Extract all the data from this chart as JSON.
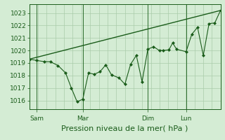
{
  "bg_color": "#d4ecd4",
  "grid_color": "#aaccaa",
  "line_color": "#1a5c1a",
  "marker_color": "#1a5c1a",
  "xlabel": "Pression niveau de la mer( hPa )",
  "xlabel_fontsize": 8,
  "yticks": [
    1016,
    1017,
    1018,
    1019,
    1020,
    1021,
    1022,
    1023
  ],
  "xtick_labels": [
    "Sam",
    "Mar",
    "Dim",
    "Lun"
  ],
  "ylim": [
    1015.3,
    1023.7
  ],
  "xlim": [
    0,
    1.0
  ],
  "line1_x": [
    0.0,
    0.04,
    0.08,
    0.11,
    0.15,
    0.19,
    0.22,
    0.25,
    0.28,
    0.31,
    0.34,
    0.37,
    0.4,
    0.43,
    0.47,
    0.5,
    0.53,
    0.56,
    0.59,
    0.62,
    0.65,
    0.68,
    0.7,
    0.73,
    0.75,
    0.77,
    0.82,
    0.85,
    0.88,
    0.91,
    0.94,
    0.97,
    1.0
  ],
  "line1_y": [
    1019.3,
    1019.2,
    1019.1,
    1019.1,
    1018.8,
    1018.2,
    1017.0,
    1015.9,
    1016.1,
    1018.2,
    1018.1,
    1018.3,
    1018.85,
    1018.05,
    1017.8,
    1017.3,
    1018.9,
    1019.6,
    1017.5,
    1020.1,
    1020.3,
    1020.0,
    1020.0,
    1020.05,
    1020.6,
    1020.1,
    1019.9,
    1021.3,
    1021.85,
    1019.6,
    1022.15,
    1022.2,
    1023.2
  ],
  "line2_x": [
    0.0,
    1.0
  ],
  "line2_y": [
    1019.3,
    1023.2
  ],
  "vline_positions": [
    0.04,
    0.28,
    0.62,
    0.82
  ],
  "xtick_x": [
    0.04,
    0.28,
    0.62,
    0.82
  ],
  "vline_color": "#2d6e2d",
  "tick_fontsize": 6.5,
  "ytick_fontsize": 6.5
}
